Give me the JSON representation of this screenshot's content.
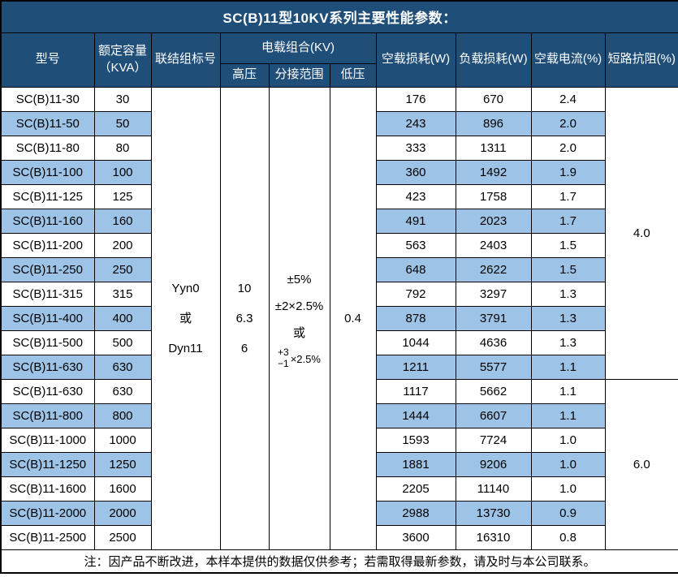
{
  "title": "SC(B)11型10KV系列主要性能参数：",
  "colors": {
    "header_bg": "#1F4E79",
    "stripe_bg": "#9DC3E6",
    "border": "#000000",
    "header_text": "#FFFFFF"
  },
  "header": {
    "model": "型号",
    "capacity_line1": "额定容量",
    "capacity_line2": "（KVA）",
    "connection": "联结组标号",
    "load_combo": "电载组合(KV)",
    "hv": "高压",
    "tap_range": "分接范围",
    "lv": "低压",
    "no_load_loss": "空载损耗(W)",
    "load_loss": "负载损耗(W)",
    "no_load_current": "空载电流(%)",
    "impedance": "短路抗阻(%)"
  },
  "merged": {
    "connection_lines": [
      "Yyn0",
      "或",
      "Dyn11"
    ],
    "hv_lines": [
      "10",
      "6.3",
      "6"
    ],
    "tap_lines": [
      "±5%",
      "±2×2.5%",
      "或"
    ],
    "tap_fraction": {
      "top": "+3",
      "bottom": "−1",
      "suffix": "×2.5%"
    },
    "lv": "0.4",
    "impedance_groups": [
      {
        "value": "4.0",
        "rows": 12
      },
      {
        "value": "6.0",
        "rows": 7
      }
    ]
  },
  "rows": [
    {
      "model": "SC(B)11-30",
      "capacity": "30",
      "no_load_loss": "176",
      "load_loss": "670",
      "no_load_current": "2.4"
    },
    {
      "model": "SC(B)11-50",
      "capacity": "50",
      "no_load_loss": "243",
      "load_loss": "896",
      "no_load_current": "2.0"
    },
    {
      "model": "SC(B)11-80",
      "capacity": "80",
      "no_load_loss": "333",
      "load_loss": "1311",
      "no_load_current": "2.0"
    },
    {
      "model": "SC(B)11-100",
      "capacity": "100",
      "no_load_loss": "360",
      "load_loss": "1492",
      "no_load_current": "1.9"
    },
    {
      "model": "SC(B)11-125",
      "capacity": "125",
      "no_load_loss": "423",
      "load_loss": "1758",
      "no_load_current": "1.7"
    },
    {
      "model": "SC(B)11-160",
      "capacity": "160",
      "no_load_loss": "491",
      "load_loss": "2023",
      "no_load_current": "1.7"
    },
    {
      "model": "SC(B)11-200",
      "capacity": "200",
      "no_load_loss": "563",
      "load_loss": "2403",
      "no_load_current": "1.5"
    },
    {
      "model": "SC(B)11-250",
      "capacity": "250",
      "no_load_loss": "648",
      "load_loss": "2622",
      "no_load_current": "1.5"
    },
    {
      "model": "SC(B)11-315",
      "capacity": "315",
      "no_load_loss": "792",
      "load_loss": "3297",
      "no_load_current": "1.3"
    },
    {
      "model": "SC(B)11-400",
      "capacity": "400",
      "no_load_loss": "878",
      "load_loss": "3791",
      "no_load_current": "1.3"
    },
    {
      "model": "SC(B)11-500",
      "capacity": "500",
      "no_load_loss": "1044",
      "load_loss": "4636",
      "no_load_current": "1.3"
    },
    {
      "model": "SC(B)11-630",
      "capacity": "630",
      "no_load_loss": "1211",
      "load_loss": "5577",
      "no_load_current": "1.1"
    },
    {
      "model": "SC(B)11-630",
      "capacity": "630",
      "no_load_loss": "1117",
      "load_loss": "5662",
      "no_load_current": "1.1"
    },
    {
      "model": "SC(B)11-800",
      "capacity": "800",
      "no_load_loss": "1444",
      "load_loss": "6607",
      "no_load_current": "1.1"
    },
    {
      "model": "SC(B)11-1000",
      "capacity": "1000",
      "no_load_loss": "1593",
      "load_loss": "7724",
      "no_load_current": "1.0"
    },
    {
      "model": "SC(B)11-1250",
      "capacity": "1250",
      "no_load_loss": "1881",
      "load_loss": "9206",
      "no_load_current": "1.0"
    },
    {
      "model": "SC(B)11-1600",
      "capacity": "1600",
      "no_load_loss": "2205",
      "load_loss": "11140",
      "no_load_current": "1.0"
    },
    {
      "model": "SC(B)11-2000",
      "capacity": "2000",
      "no_load_loss": "2988",
      "load_loss": "13730",
      "no_load_current": "0.9"
    },
    {
      "model": "SC(B)11-2500",
      "capacity": "2500",
      "no_load_loss": "3600",
      "load_loss": "16310",
      "no_load_current": "0.8"
    }
  ],
  "footer": "注：因产品不断改进，本样本提供的数据仅供参考；若需取得最新参数，请及时与本公司联系。"
}
